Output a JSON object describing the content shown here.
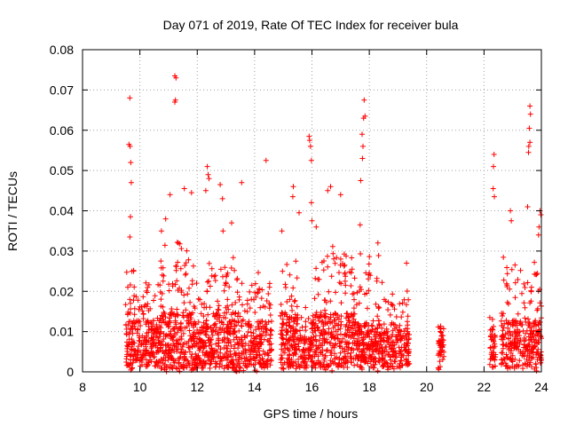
{
  "chart_data": {
    "type": "scatter",
    "title": "Day 071 of 2019, Rate Of TEC Index for receiver bula",
    "xlabel": "GPS time / hours",
    "ylabel": "ROTI / TECUs",
    "xlim": [
      8,
      24
    ],
    "ylim": [
      0,
      0.08
    ],
    "xticks": [
      "8",
      "10",
      "12",
      "14",
      "16",
      "18",
      "20",
      "22",
      "24"
    ],
    "yticks": [
      "0",
      "0.01",
      "0.02",
      "0.03",
      "0.04",
      "0.05",
      "0.06",
      "0.07",
      "0.08"
    ],
    "grid": true,
    "marker": "+",
    "color": "#ff0000",
    "segments": [
      {
        "start": 9.5,
        "end": 10.7,
        "typ": 0.006,
        "spread": 0.022,
        "n": 260
      },
      {
        "start": 10.7,
        "end": 11.8,
        "typ": 0.007,
        "spread": 0.028,
        "n": 260
      },
      {
        "start": 11.8,
        "end": 12.6,
        "typ": 0.006,
        "spread": 0.026,
        "n": 190
      },
      {
        "start": 12.6,
        "end": 13.5,
        "typ": 0.007,
        "spread": 0.026,
        "n": 200
      },
      {
        "start": 13.5,
        "end": 14.6,
        "typ": 0.006,
        "spread": 0.022,
        "n": 210
      },
      {
        "start": 14.9,
        "end": 15.5,
        "typ": 0.007,
        "spread": 0.026,
        "n": 150
      },
      {
        "start": 15.5,
        "end": 16.0,
        "typ": 0.004,
        "spread": 0.014,
        "n": 80
      },
      {
        "start": 16.0,
        "end": 17.5,
        "typ": 0.007,
        "spread": 0.028,
        "n": 320
      },
      {
        "start": 17.5,
        "end": 18.5,
        "typ": 0.006,
        "spread": 0.026,
        "n": 230
      },
      {
        "start": 18.5,
        "end": 19.4,
        "typ": 0.005,
        "spread": 0.018,
        "n": 170
      },
      {
        "start": 20.4,
        "end": 20.6,
        "typ": 0.005,
        "spread": 0.012,
        "n": 45
      },
      {
        "start": 22.2,
        "end": 22.4,
        "typ": 0.005,
        "spread": 0.012,
        "n": 45
      },
      {
        "start": 22.6,
        "end": 24.0,
        "typ": 0.006,
        "spread": 0.026,
        "n": 300
      }
    ],
    "highlights": [
      [
        9.65,
        0.068
      ],
      [
        9.62,
        0.0565
      ],
      [
        9.66,
        0.056
      ],
      [
        9.68,
        0.052
      ],
      [
        9.7,
        0.047
      ],
      [
        9.67,
        0.0385
      ],
      [
        9.65,
        0.0335
      ],
      [
        9.72,
        0.025
      ],
      [
        9.78,
        0.025
      ],
      [
        11.22,
        0.0735
      ],
      [
        11.26,
        0.073
      ],
      [
        11.24,
        0.0675
      ],
      [
        11.22,
        0.067
      ],
      [
        11.05,
        0.044
      ],
      [
        11.55,
        0.0455
      ],
      [
        11.8,
        0.0445
      ],
      [
        12.35,
        0.051
      ],
      [
        12.38,
        0.049
      ],
      [
        12.41,
        0.048
      ],
      [
        12.3,
        0.045
      ],
      [
        12.8,
        0.0465
      ],
      [
        12.88,
        0.043
      ],
      [
        13.55,
        0.047
      ],
      [
        14.4,
        0.0525
      ],
      [
        15.35,
        0.046
      ],
      [
        15.33,
        0.0435
      ],
      [
        15.55,
        0.0395
      ],
      [
        15.9,
        0.0585
      ],
      [
        15.92,
        0.0575
      ],
      [
        15.95,
        0.056
      ],
      [
        15.98,
        0.0525
      ],
      [
        15.98,
        0.042
      ],
      [
        16.65,
        0.046
      ],
      [
        16.55,
        0.045
      ],
      [
        17.0,
        0.044
      ],
      [
        17.82,
        0.0675
      ],
      [
        17.85,
        0.0635
      ],
      [
        17.8,
        0.063
      ],
      [
        17.75,
        0.059
      ],
      [
        17.78,
        0.056
      ],
      [
        17.76,
        0.053
      ],
      [
        17.7,
        0.0475
      ],
      [
        17.68,
        0.0365
      ],
      [
        18.3,
        0.032
      ],
      [
        19.3,
        0.027
      ],
      [
        22.35,
        0.054
      ],
      [
        22.33,
        0.051
      ],
      [
        22.32,
        0.0455
      ],
      [
        22.36,
        0.0435
      ],
      [
        22.92,
        0.04
      ],
      [
        22.95,
        0.0375
      ],
      [
        23.6,
        0.066
      ],
      [
        23.62,
        0.064
      ],
      [
        23.58,
        0.0605
      ],
      [
        23.6,
        0.057
      ],
      [
        23.56,
        0.056
      ],
      [
        23.55,
        0.0545
      ],
      [
        23.52,
        0.041
      ],
      [
        23.95,
        0.04
      ],
      [
        23.98,
        0.039
      ],
      [
        23.92,
        0.036
      ],
      [
        23.9,
        0.034
      ],
      [
        16.0,
        0.0375
      ],
      [
        16.15,
        0.036
      ],
      [
        14.95,
        0.035
      ],
      [
        13.2,
        0.037
      ],
      [
        10.75,
        0.035
      ],
      [
        10.9,
        0.038
      ],
      [
        12.9,
        0.035
      ]
    ]
  }
}
